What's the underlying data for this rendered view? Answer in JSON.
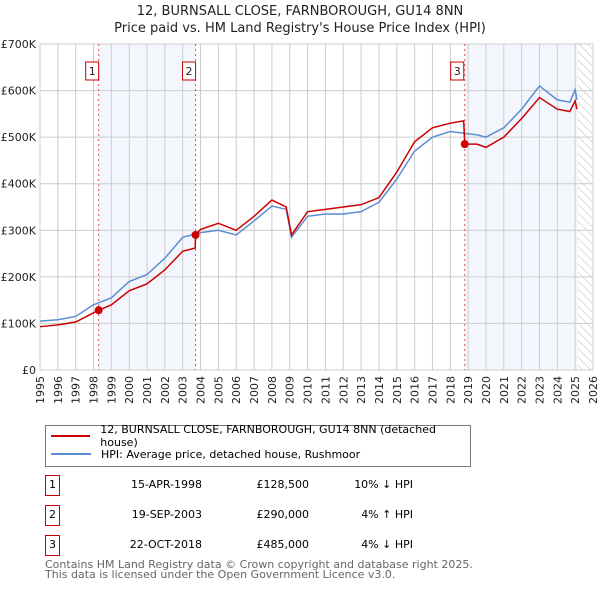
{
  "chart_data": {
    "type": "line",
    "title": "12, BURNSALL CLOSE, FARNBOROUGH, GU14 8NN",
    "subtitle": "Price paid vs. HM Land Registry's House Price Index (HPI)",
    "xlim": [
      1995,
      2026
    ],
    "ylim": [
      0,
      700000
    ],
    "y_ticks": [
      {
        "v": 0,
        "label": "£0"
      },
      {
        "v": 100000,
        "label": "£100K"
      },
      {
        "v": 200000,
        "label": "£200K"
      },
      {
        "v": 300000,
        "label": "£300K"
      },
      {
        "v": 400000,
        "label": "£400K"
      },
      {
        "v": 500000,
        "label": "£500K"
      },
      {
        "v": 600000,
        "label": "£600K"
      },
      {
        "v": 700000,
        "label": "£700K"
      }
    ],
    "x_ticks": [
      "1995",
      "1996",
      "1997",
      "1998",
      "1999",
      "2000",
      "2001",
      "2002",
      "2003",
      "2004",
      "2005",
      "2006",
      "2007",
      "2008",
      "2009",
      "2010",
      "2011",
      "2012",
      "2013",
      "2014",
      "2015",
      "2016",
      "2017",
      "2018",
      "2019",
      "2020",
      "2021",
      "2022",
      "2023",
      "2024",
      "2025",
      "2026"
    ],
    "series": [
      {
        "name": "12, BURNSALL CLOSE, FARNBOROUGH, GU14 8NN (detached house)",
        "color": "#cc0000",
        "points": [
          [
            1995,
            93000
          ],
          [
            1996,
            97000
          ],
          [
            1997,
            103000
          ],
          [
            1998.29,
            128500
          ],
          [
            1999,
            140000
          ],
          [
            2000,
            170000
          ],
          [
            2001,
            185000
          ],
          [
            2002,
            215000
          ],
          [
            2003,
            255000
          ],
          [
            2003.7,
            262000
          ],
          [
            2003.72,
            290000
          ],
          [
            2004,
            302000
          ],
          [
            2005,
            315000
          ],
          [
            2006,
            300000
          ],
          [
            2007,
            330000
          ],
          [
            2008,
            365000
          ],
          [
            2008.8,
            350000
          ],
          [
            2009.1,
            290000
          ],
          [
            2010,
            340000
          ],
          [
            2011,
            345000
          ],
          [
            2012,
            350000
          ],
          [
            2013,
            355000
          ],
          [
            2014,
            370000
          ],
          [
            2015,
            425000
          ],
          [
            2016,
            490000
          ],
          [
            2017,
            520000
          ],
          [
            2018,
            530000
          ],
          [
            2018.75,
            535000
          ],
          [
            2018.81,
            485000
          ],
          [
            2019.5,
            485000
          ],
          [
            2020,
            478000
          ],
          [
            2021,
            500000
          ],
          [
            2022,
            540000
          ],
          [
            2023,
            585000
          ],
          [
            2024,
            560000
          ],
          [
            2024.7,
            555000
          ],
          [
            2025,
            578000
          ],
          [
            2025.1,
            560000
          ]
        ]
      },
      {
        "name": "HPI: Average price, detached house, Rushmoor",
        "color": "#5b8dd1",
        "points": [
          [
            1995,
            105000
          ],
          [
            1996,
            108000
          ],
          [
            1997,
            115000
          ],
          [
            1998,
            140000
          ],
          [
            1999,
            155000
          ],
          [
            2000,
            190000
          ],
          [
            2001,
            205000
          ],
          [
            2002,
            240000
          ],
          [
            2003,
            285000
          ],
          [
            2004,
            295000
          ],
          [
            2005,
            300000
          ],
          [
            2006,
            290000
          ],
          [
            2007,
            320000
          ],
          [
            2008,
            352000
          ],
          [
            2008.8,
            345000
          ],
          [
            2009.1,
            285000
          ],
          [
            2010,
            330000
          ],
          [
            2011,
            335000
          ],
          [
            2012,
            335000
          ],
          [
            2013,
            340000
          ],
          [
            2014,
            360000
          ],
          [
            2015,
            410000
          ],
          [
            2016,
            470000
          ],
          [
            2017,
            500000
          ],
          [
            2018,
            512000
          ],
          [
            2018.8,
            508000
          ],
          [
            2019.5,
            505000
          ],
          [
            2020,
            500000
          ],
          [
            2021,
            520000
          ],
          [
            2022,
            560000
          ],
          [
            2023,
            610000
          ],
          [
            2024,
            580000
          ],
          [
            2024.7,
            575000
          ],
          [
            2025,
            602000
          ],
          [
            2025.1,
            580000
          ]
        ]
      }
    ],
    "sales": [
      {
        "n": "1",
        "x": 1998.29,
        "price": 128500,
        "date": "15-APR-1998",
        "price_label": "£128,500",
        "hpi": "10% ↓ HPI"
      },
      {
        "n": "2",
        "x": 2003.72,
        "price": 290000,
        "date": "19-SEP-2003",
        "price_label": "£290,000",
        "hpi": "4% ↑ HPI"
      },
      {
        "n": "3",
        "x": 2018.81,
        "price": 485000,
        "date": "22-OCT-2018",
        "price_label": "£485,000",
        "hpi": "4% ↓ HPI"
      }
    ],
    "shaded": [
      [
        1998.29,
        2003.72
      ],
      [
        2018.81,
        2025.15
      ]
    ],
    "hatched_from": 2025.15
  },
  "footer": {
    "line1": "Contains HM Land Registry data © Crown copyright and database right 2025.",
    "line2": "This data is licensed under the Open Government Licence v3.0."
  }
}
